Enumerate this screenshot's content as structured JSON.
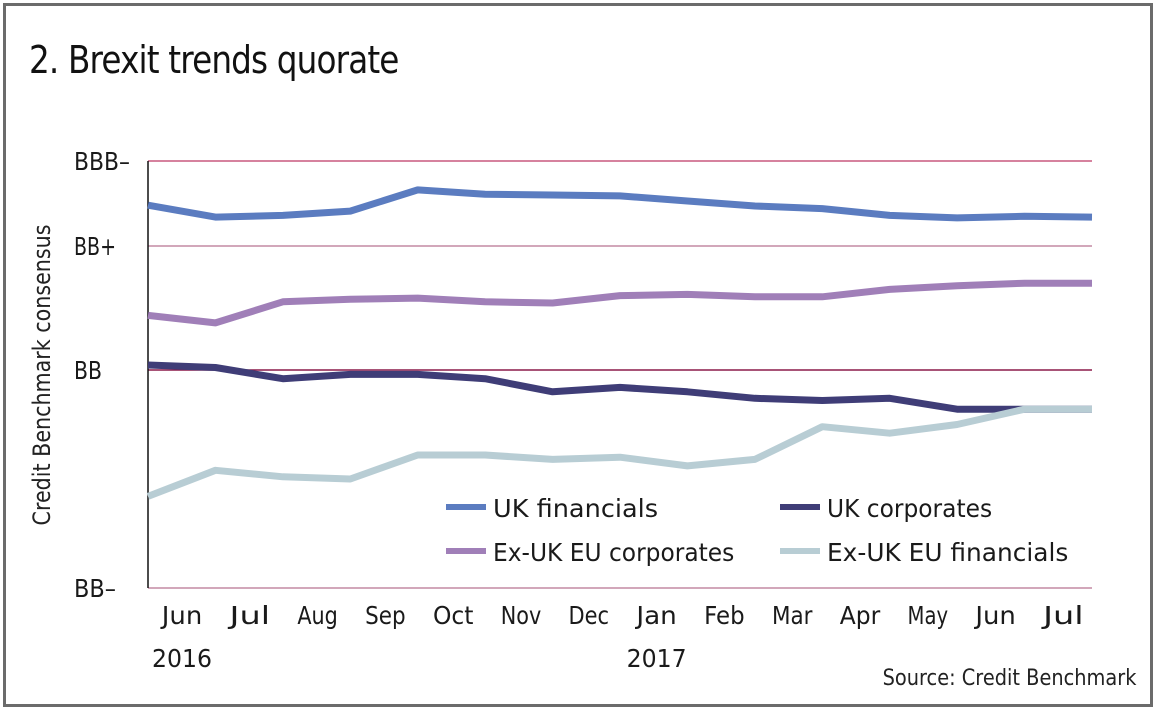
{
  "chart_data": {
    "type": "line",
    "title": "2. Brexit trends quorate",
    "ylabel": "Credit Benchmark consensus",
    "xlabel": "",
    "source": "Source: Credit Benchmark",
    "y_ticks": [
      {
        "label": "BBB–",
        "value": 3
      },
      {
        "label": "BB+",
        "value": 2
      },
      {
        "label": "BB",
        "value": 1
      },
      {
        "label": "BB–",
        "value": 0
      }
    ],
    "ylim": [
      0,
      3
    ],
    "y_scale_note": "notch scale; gridlines at BB–, BB, BB+, BBB–",
    "x": [
      "Jun 2016 start",
      "Jun",
      "Jul",
      "Aug",
      "Sep",
      "Oct",
      "Nov",
      "Dec",
      "Jan",
      "Feb",
      "Mar",
      "Apr",
      "May",
      "Jun",
      "Jul"
    ],
    "x_tick_labels": [
      "Jun",
      "Jul",
      "Aug",
      "Sep",
      "Oct",
      "Nov",
      "Dec",
      "Jan",
      "Feb",
      "Mar",
      "Apr",
      "May",
      "Jun",
      "Jul"
    ],
    "year_labels": [
      {
        "label": "2016",
        "at_month_index": 0
      },
      {
        "label": "2017",
        "at_month_index": 7
      }
    ],
    "grid": true,
    "legend_position": "bottom-right inside plot",
    "series": [
      {
        "name": "UK financials",
        "color": "#5b7cc0",
        "values": [
          2.48,
          2.34,
          2.36,
          2.41,
          2.66,
          2.61,
          2.6,
          2.59,
          2.53,
          2.47,
          2.44,
          2.36,
          2.33,
          2.35,
          2.34
        ]
      },
      {
        "name": "Ex-UK EU corporates",
        "color": "#a07fb8",
        "values": [
          1.44,
          1.38,
          1.55,
          1.57,
          1.58,
          1.55,
          1.54,
          1.6,
          1.61,
          1.59,
          1.59,
          1.65,
          1.68,
          1.7,
          1.7
        ]
      },
      {
        "name": "UK corporates",
        "color": "#3f3d77",
        "values": [
          1.04,
          1.02,
          0.96,
          0.98,
          0.98,
          0.96,
          0.9,
          0.92,
          0.9,
          0.87,
          0.86,
          0.87,
          0.82,
          0.82,
          0.82
        ]
      },
      {
        "name": "Ex-UK EU financials",
        "color": "#b8cdd4",
        "values": [
          0.42,
          0.54,
          0.51,
          0.5,
          0.61,
          0.61,
          0.59,
          0.6,
          0.56,
          0.59,
          0.74,
          0.71,
          0.75,
          0.82,
          0.82
        ]
      }
    ],
    "legend": [
      {
        "name": "UK financials",
        "color": "#5b7cc0"
      },
      {
        "name": "UK corporates",
        "color": "#3f3d77"
      },
      {
        "name": "Ex-UK EU corporates",
        "color": "#a07fb8"
      },
      {
        "name": "Ex-UK EU financials",
        "color": "#b8cdd4"
      }
    ],
    "gridline_colors": {
      "BBB–": "#c9587f",
      "BB+": "#c48aa3",
      "BB": "#8b1a4a",
      "BB–": "#c48aa3"
    }
  }
}
